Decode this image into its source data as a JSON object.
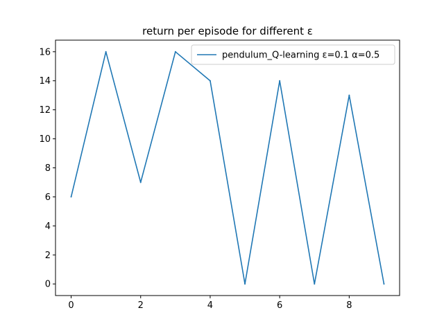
{
  "chart_data": {
    "type": "line",
    "title": "return per episode for different ε",
    "xlabel": "",
    "ylabel": "",
    "x": [
      0,
      1,
      2,
      3,
      4,
      5,
      6,
      7,
      8,
      9
    ],
    "series": [
      {
        "name": "pendulum_Q-learning ε=0.1 α=0.5",
        "color": "#1f77b4",
        "values": [
          6,
          16,
          7,
          16,
          14,
          0,
          14,
          0,
          13,
          0
        ]
      }
    ],
    "xlim": [
      -0.45,
      9.45
    ],
    "ylim": [
      -0.8,
      16.8
    ],
    "xticks": [
      0,
      2,
      4,
      6,
      8
    ],
    "yticks": [
      0,
      2,
      4,
      6,
      8,
      10,
      12,
      14,
      16
    ],
    "grid": false,
    "legend_position": "top-right"
  }
}
